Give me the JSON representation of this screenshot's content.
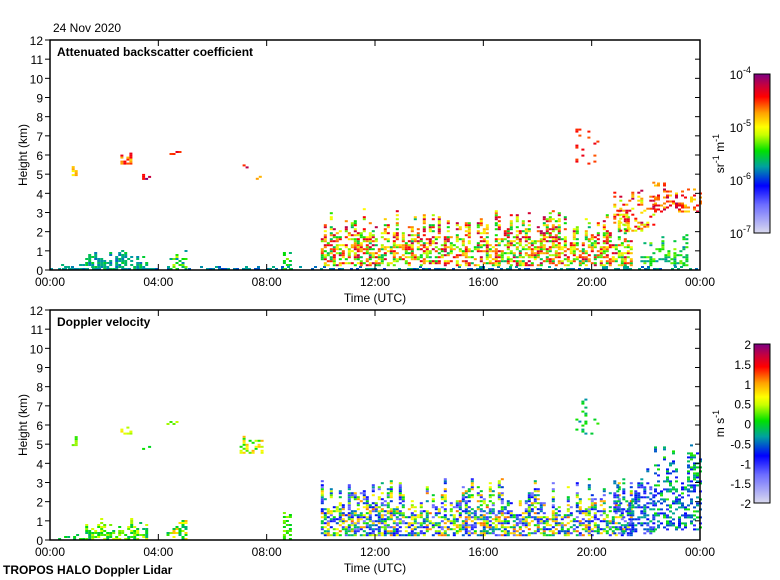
{
  "header": {
    "date": "24 Nov 2020"
  },
  "footer": {
    "instrument": "TROPOS HALO Doppler Lidar"
  },
  "chart_data": [
    {
      "type": "heatmap",
      "title": "Attenuated backscatter coefficient",
      "xlabel": "Time (UTC)",
      "ylabel": "Height (km)",
      "xlim": [
        0,
        24
      ],
      "ylim": [
        0,
        12
      ],
      "xticks": [
        "00:00",
        "04:00",
        "08:00",
        "12:00",
        "16:00",
        "20:00",
        "00:00"
      ],
      "yticks": [
        "0",
        "1",
        "2",
        "3",
        "4",
        "5",
        "6",
        "7",
        "8",
        "9",
        "10",
        "11",
        "12"
      ],
      "colorbar": {
        "label": "sr-1 m-1",
        "label_base": "sr",
        "label_exp1": "-1",
        "label_mid": " m",
        "label_exp2": "-1",
        "scale": "log",
        "range": [
          1e-07,
          0.0001
        ],
        "ticks": [
          {
            "base": "10",
            "exp": "-4"
          },
          {
            "base": "10",
            "exp": "-5"
          },
          {
            "base": "10",
            "exp": "-6"
          },
          {
            "base": "10",
            "exp": "-7"
          }
        ]
      },
      "features": [
        {
          "t": [
            0,
            24
          ],
          "h": [
            0,
            0.25
          ],
          "v": [
            0.35,
            0.45
          ],
          "d": 0.55
        },
        {
          "t": [
            0.3,
            1.2
          ],
          "h": [
            0,
            0.4
          ],
          "v": [
            0.4,
            0.45
          ],
          "d": 0.5
        },
        {
          "t": [
            1.3,
            3.6
          ],
          "h": [
            0,
            1.2
          ],
          "v": [
            0.38,
            0.5
          ],
          "d": 0.6
        },
        {
          "t": [
            4.3,
            5.0
          ],
          "h": [
            0,
            1.2
          ],
          "v": [
            0.4,
            0.62
          ],
          "d": 0.5
        },
        {
          "t": [
            0.8,
            1.0
          ],
          "h": [
            4.9,
            5.5
          ],
          "v": [
            0.65,
            0.78
          ],
          "d": 0.7
        },
        {
          "t": [
            2.6,
            3.0
          ],
          "h": [
            5.5,
            6.2
          ],
          "v": [
            0.7,
            0.9
          ],
          "d": 0.7
        },
        {
          "t": [
            3.4,
            3.7
          ],
          "h": [
            4.7,
            5.3
          ],
          "v": [
            0.85,
            1.0
          ],
          "d": 0.6
        },
        {
          "t": [
            4.3,
            4.8
          ],
          "h": [
            6.0,
            6.4
          ],
          "v": [
            0.8,
            0.9
          ],
          "d": 0.6
        },
        {
          "t": [
            7.0,
            7.3
          ],
          "h": [
            5.3,
            5.7
          ],
          "v": [
            0.8,
            1.0
          ],
          "d": 0.5
        },
        {
          "t": [
            7.6,
            7.8
          ],
          "h": [
            4.5,
            5.2
          ],
          "v": [
            0.7,
            0.8
          ],
          "d": 0.5
        },
        {
          "t": [
            8.6,
            8.9
          ],
          "h": [
            0,
            2.0
          ],
          "v": [
            0.45,
            0.6
          ],
          "d": 0.5
        },
        {
          "t": [
            10.0,
            21.5
          ],
          "h": [
            0.2,
            3.3
          ],
          "v": [
            0.45,
            0.95
          ],
          "d": 0.55
        },
        {
          "t": [
            19.4,
            20.2
          ],
          "h": [
            5.5,
            8.1
          ],
          "v": [
            0.8,
            0.9
          ],
          "d": 0.12
        },
        {
          "t": [
            20.8,
            22.3
          ],
          "h": [
            2.0,
            4.8
          ],
          "v": [
            0.6,
            0.95
          ],
          "d": 0.35
        },
        {
          "t": [
            22.3,
            24
          ],
          "h": [
            3.0,
            5.2
          ],
          "v": [
            0.7,
            0.95
          ],
          "d": 0.45
        },
        {
          "t": [
            21.8,
            23.5
          ],
          "h": [
            0.2,
            2.0
          ],
          "v": [
            0.4,
            0.6
          ],
          "d": 0.4
        }
      ]
    },
    {
      "type": "heatmap",
      "title": "Doppler velocity",
      "xlabel": "Time (UTC)",
      "ylabel": "Height (km)",
      "xlim": [
        0,
        24
      ],
      "ylim": [
        0,
        12
      ],
      "xticks": [
        "00:00",
        "04:00",
        "08:00",
        "12:00",
        "16:00",
        "20:00",
        "00:00"
      ],
      "yticks": [
        "0",
        "1",
        "2",
        "3",
        "4",
        "5",
        "6",
        "7",
        "8",
        "9",
        "10",
        "11",
        "12"
      ],
      "colorbar": {
        "label": "m s-1",
        "label_base": "m s",
        "label_exp1": "-1",
        "scale": "linear",
        "range": [
          -2,
          2
        ],
        "ticks": [
          "2",
          "1.5",
          "1",
          "0.5",
          "0",
          "-0.5",
          "-1",
          "-1.5",
          "-2"
        ]
      },
      "features": [
        {
          "t": [
            4.0,
            24
          ],
          "h": [
            0,
            0.08
          ],
          "v": [
            0.98,
            1.0
          ],
          "d": 0.9
        },
        {
          "t": [
            0.3,
            1.2
          ],
          "h": [
            0,
            0.5
          ],
          "v": [
            0.45,
            0.55
          ],
          "d": 0.4
        },
        {
          "t": [
            1.3,
            3.6
          ],
          "h": [
            0,
            1.2
          ],
          "v": [
            0.45,
            0.65
          ],
          "d": 0.55
        },
        {
          "t": [
            4.3,
            5.0
          ],
          "h": [
            0,
            1.2
          ],
          "v": [
            0.45,
            0.75
          ],
          "d": 0.45
        },
        {
          "t": [
            0.8,
            1.0
          ],
          "h": [
            4.9,
            5.5
          ],
          "v": [
            0.5,
            0.6
          ],
          "d": 0.6
        },
        {
          "t": [
            2.6,
            3.0
          ],
          "h": [
            5.5,
            6.2
          ],
          "v": [
            0.6,
            0.75
          ],
          "d": 0.6
        },
        {
          "t": [
            3.4,
            3.7
          ],
          "h": [
            4.7,
            5.3
          ],
          "v": [
            0.5,
            0.6
          ],
          "d": 0.5
        },
        {
          "t": [
            4.3,
            4.8
          ],
          "h": [
            6.0,
            6.4
          ],
          "v": [
            0.55,
            0.65
          ],
          "d": 0.5
        },
        {
          "t": [
            7.0,
            7.8
          ],
          "h": [
            4.5,
            5.7
          ],
          "v": [
            0.5,
            0.75
          ],
          "d": 0.45
        },
        {
          "t": [
            8.6,
            8.9
          ],
          "h": [
            0,
            2.0
          ],
          "v": [
            0.5,
            0.6
          ],
          "d": 0.5
        },
        {
          "t": [
            10.0,
            21.5
          ],
          "h": [
            0.2,
            3.3
          ],
          "v": [
            0.15,
            0.8
          ],
          "d": 0.6
        },
        {
          "t": [
            19.4,
            20.2
          ],
          "h": [
            5.5,
            8.1
          ],
          "v": [
            0.4,
            0.55
          ],
          "d": 0.12
        },
        {
          "t": [
            20.8,
            22.3
          ],
          "h": [
            0.3,
            4.8
          ],
          "v": [
            0.2,
            0.5
          ],
          "d": 0.4
        },
        {
          "t": [
            22.3,
            24
          ],
          "h": [
            0.5,
            5.2
          ],
          "v": [
            0.25,
            0.55
          ],
          "d": 0.4
        }
      ]
    }
  ]
}
